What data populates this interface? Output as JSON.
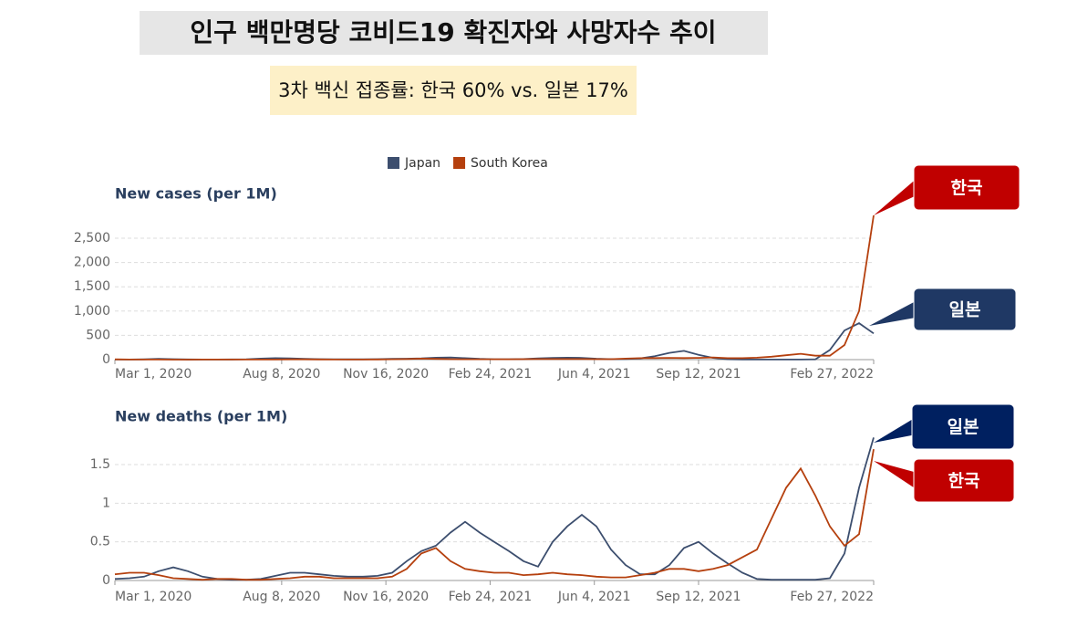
{
  "title": "인구 백만명당 코비드19 확진자와 사망자수 추이",
  "subtitle": "3차 백신 접종률: 한국 60% vs. 일본 17%",
  "callouts": [
    {
      "text": "한국",
      "color": "#c00000"
    },
    {
      "text": "일본",
      "color": "#1f3864"
    },
    {
      "text": "일본",
      "color": "#002060"
    },
    {
      "text": "한국",
      "color": "#c00000"
    }
  ],
  "chart_data": [
    {
      "type": "line",
      "title": "New cases (per 1M)",
      "x": [
        "2020-03-01",
        "2020-03-15",
        "2020-03-29",
        "2020-04-12",
        "2020-04-26",
        "2020-05-10",
        "2020-05-24",
        "2020-06-07",
        "2020-06-21",
        "2020-07-05",
        "2020-07-19",
        "2020-08-02",
        "2020-08-16",
        "2020-08-30",
        "2020-09-13",
        "2020-09-27",
        "2020-10-11",
        "2020-10-25",
        "2020-11-08",
        "2020-11-22",
        "2020-12-06",
        "2020-12-20",
        "2021-01-03",
        "2021-01-17",
        "2021-01-31",
        "2021-02-14",
        "2021-02-28",
        "2021-03-14",
        "2021-03-28",
        "2021-04-11",
        "2021-04-25",
        "2021-05-09",
        "2021-05-23",
        "2021-06-06",
        "2021-06-20",
        "2021-07-04",
        "2021-07-18",
        "2021-08-01",
        "2021-08-15",
        "2021-08-29",
        "2021-09-12",
        "2021-09-26",
        "2021-10-10",
        "2021-10-24",
        "2021-11-07",
        "2021-11-21",
        "2021-12-05",
        "2021-12-19",
        "2022-01-02",
        "2022-01-16",
        "2022-01-30",
        "2022-02-13",
        "2022-02-27"
      ],
      "xlim": [
        "2020-03-01",
        "2022-02-27"
      ],
      "xticks": [
        {
          "value": "2020-03-01",
          "label": "Mar 1, 2020"
        },
        {
          "value": "2020-08-08",
          "label": "Aug 8, 2020"
        },
        {
          "value": "2020-11-16",
          "label": "Nov 16, 2020"
        },
        {
          "value": "2021-02-24",
          "label": "Feb 24, 2021"
        },
        {
          "value": "2021-06-04",
          "label": "Jun 4, 2021"
        },
        {
          "value": "2021-09-12",
          "label": "Sep 12, 2021"
        },
        {
          "value": "2022-02-27",
          "label": "Feb 27, 2022"
        }
      ],
      "ylim": [
        0,
        3000
      ],
      "yticks": [
        0,
        500,
        {
          "value": 1000,
          "label": "1,000"
        },
        {
          "value": 1500,
          "label": "1,500"
        },
        {
          "value": 2000,
          "label": "2,000"
        },
        {
          "value": 2500,
          "label": "2,500"
        }
      ],
      "grid": true,
      "series": [
        {
          "name": "Japan",
          "color": "#3c4e6e",
          "values": [
            1,
            2,
            5,
            15,
            10,
            3,
            1,
            2,
            4,
            8,
            20,
            30,
            25,
            15,
            10,
            8,
            6,
            5,
            10,
            15,
            18,
            25,
            40,
            45,
            30,
            15,
            8,
            8,
            12,
            25,
            35,
            40,
            35,
            18,
            10,
            12,
            25,
            70,
            140,
            180,
            100,
            35,
            8,
            2,
            1,
            1,
            1,
            1,
            5,
            200,
            600,
            750,
            540
          ]
        },
        {
          "name": "South Korea",
          "color": "#b5400e",
          "values": [
            5,
            2,
            2,
            1,
            0.5,
            0.5,
            1,
            1,
            1,
            1,
            1,
            1,
            5,
            5,
            3,
            2,
            2,
            2,
            3,
            8,
            12,
            20,
            15,
            10,
            7,
            8,
            8,
            8,
            9,
            12,
            12,
            11,
            11,
            10,
            9,
            20,
            30,
            32,
            35,
            32,
            35,
            45,
            30,
            30,
            40,
            60,
            90,
            120,
            80,
            80,
            300,
            1000,
            2970
          ]
        }
      ]
    },
    {
      "type": "line",
      "title": "New deaths (per 1M)",
      "x": [
        "2020-03-01",
        "2020-03-15",
        "2020-03-29",
        "2020-04-12",
        "2020-04-26",
        "2020-05-10",
        "2020-05-24",
        "2020-06-07",
        "2020-06-21",
        "2020-07-05",
        "2020-07-19",
        "2020-08-02",
        "2020-08-16",
        "2020-08-30",
        "2020-09-13",
        "2020-09-27",
        "2020-10-11",
        "2020-10-25",
        "2020-11-08",
        "2020-11-22",
        "2020-12-06",
        "2020-12-20",
        "2021-01-03",
        "2021-01-17",
        "2021-01-31",
        "2021-02-14",
        "2021-02-28",
        "2021-03-14",
        "2021-03-28",
        "2021-04-11",
        "2021-04-25",
        "2021-05-09",
        "2021-05-23",
        "2021-06-06",
        "2021-06-20",
        "2021-07-04",
        "2021-07-18",
        "2021-08-01",
        "2021-08-15",
        "2021-08-29",
        "2021-09-12",
        "2021-09-26",
        "2021-10-10",
        "2021-10-24",
        "2021-11-07",
        "2021-11-21",
        "2021-12-05",
        "2021-12-19",
        "2022-01-02",
        "2022-01-16",
        "2022-01-30",
        "2022-02-13",
        "2022-02-27"
      ],
      "xlim": [
        "2020-03-01",
        "2022-02-27"
      ],
      "xticks": [
        {
          "value": "2020-03-01",
          "label": "Mar 1, 2020"
        },
        {
          "value": "2020-08-08",
          "label": "Aug 8, 2020"
        },
        {
          "value": "2020-11-16",
          "label": "Nov 16, 2020"
        },
        {
          "value": "2021-02-24",
          "label": "Feb 24, 2021"
        },
        {
          "value": "2021-06-04",
          "label": "Jun 4, 2021"
        },
        {
          "value": "2021-09-12",
          "label": "Sep 12, 2021"
        },
        {
          "value": "2022-02-27",
          "label": "Feb 27, 2022"
        }
      ],
      "ylim": [
        0,
        2
      ],
      "yticks": [
        0,
        0.5,
        1,
        1.5
      ],
      "grid": true,
      "series": [
        {
          "name": "Japan",
          "color": "#3c4e6e",
          "values": [
            0.02,
            0.03,
            0.05,
            0.12,
            0.17,
            0.12,
            0.05,
            0.02,
            0.01,
            0.01,
            0.02,
            0.06,
            0.1,
            0.1,
            0.08,
            0.06,
            0.05,
            0.05,
            0.06,
            0.1,
            0.25,
            0.38,
            0.45,
            0.62,
            0.76,
            0.62,
            0.5,
            0.38,
            0.25,
            0.18,
            0.5,
            0.7,
            0.85,
            0.7,
            0.4,
            0.2,
            0.08,
            0.08,
            0.2,
            0.42,
            0.5,
            0.35,
            0.22,
            0.1,
            0.02,
            0.01,
            0.01,
            0.01,
            0.01,
            0.03,
            0.35,
            1.2,
            1.85
          ]
        },
        {
          "name": "South Korea",
          "color": "#b5400e",
          "values": [
            0.08,
            0.1,
            0.1,
            0.07,
            0.03,
            0.02,
            0.01,
            0.02,
            0.02,
            0.01,
            0.01,
            0.02,
            0.03,
            0.05,
            0.05,
            0.03,
            0.03,
            0.03,
            0.03,
            0.05,
            0.15,
            0.35,
            0.42,
            0.25,
            0.15,
            0.12,
            0.1,
            0.1,
            0.07,
            0.08,
            0.1,
            0.08,
            0.07,
            0.05,
            0.04,
            0.04,
            0.07,
            0.1,
            0.15,
            0.15,
            0.12,
            0.15,
            0.2,
            0.3,
            0.4,
            0.8,
            1.2,
            1.45,
            1.1,
            0.7,
            0.45,
            0.6,
            1.7
          ]
        }
      ]
    }
  ]
}
